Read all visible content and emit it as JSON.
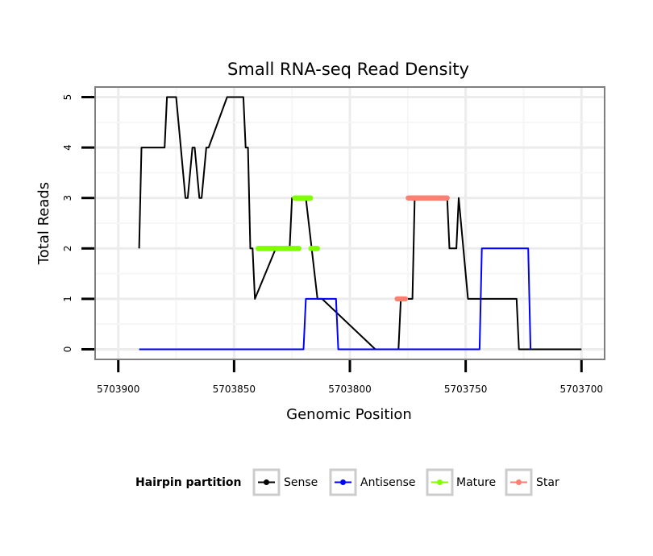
{
  "chart_data": {
    "type": "line",
    "title": "Small RNA-seq Read Density",
    "xlabel": "Genomic Position",
    "ylabel": "Total Reads",
    "x_reversed": true,
    "xlim": [
      5703910,
      5703690
    ],
    "ylim": [
      -0.2,
      5.2
    ],
    "x_ticks": [
      {
        "value": 5703900,
        "label": "5703900"
      },
      {
        "value": 5703850,
        "label": "5703850"
      },
      {
        "value": 5703800,
        "label": "5703800"
      },
      {
        "value": 5703750,
        "label": "5703750"
      },
      {
        "value": 5703700,
        "label": "5703700"
      }
    ],
    "y_ticks": [
      {
        "value": 0,
        "label": "0"
      },
      {
        "value": 1,
        "label": "1"
      },
      {
        "value": 2,
        "label": "2"
      },
      {
        "value": 3,
        "label": "3"
      },
      {
        "value": 4,
        "label": "4"
      },
      {
        "value": 5,
        "label": "5"
      }
    ],
    "grid": true,
    "legend_title": "Hairpin partition",
    "legend_position": "bottom",
    "series": [
      {
        "name": "Sense",
        "color": "#000000",
        "style": "line",
        "x": [
          5703891,
          5703890,
          5703880,
          5703879,
          5703875,
          5703873,
          5703871,
          5703870,
          5703868,
          5703867,
          5703865,
          5703864,
          5703862,
          5703861,
          5703853,
          5703846,
          5703845,
          5703844,
          5703843,
          5703842,
          5703841,
          5703832,
          5703826,
          5703825,
          5703819,
          5703814,
          5703812,
          5703789,
          5703779,
          5703778,
          5703773,
          5703772,
          5703758,
          5703757,
          5703755,
          5703754,
          5703753,
          5703749,
          5703746,
          5703745,
          5703728,
          5703727,
          5703717,
          5703716,
          5703700
        ],
        "y": [
          2,
          4,
          4,
          5,
          5,
          4,
          3,
          3,
          4,
          4,
          3,
          3,
          4,
          4,
          5,
          5,
          4,
          4,
          2,
          2,
          1,
          2,
          2,
          3,
          3,
          1,
          1,
          0,
          0,
          1,
          1,
          3,
          3,
          2,
          2,
          2,
          3,
          1,
          1,
          1,
          1,
          0,
          0,
          0,
          0
        ]
      },
      {
        "name": "Antisense",
        "color": "#0000ff",
        "style": "line",
        "x": [
          5703891,
          5703820,
          5703819,
          5703806,
          5703805,
          5703744,
          5703743,
          5703723,
          5703722
        ],
        "y": [
          0,
          0,
          1,
          1,
          0,
          0,
          2,
          2,
          0
        ]
      },
      {
        "name": "Mature",
        "color": "#7fff00",
        "style": "points",
        "segments": [
          {
            "x_start": 5703840,
            "x_end": 5703822,
            "y": 2
          },
          {
            "x_start": 5703824,
            "x_end": 5703817,
            "y": 3
          },
          {
            "x_start": 5703817,
            "x_end": 5703814,
            "y": 2
          }
        ]
      },
      {
        "name": "Star",
        "color": "#fa8072",
        "style": "points",
        "segments": [
          {
            "x_start": 5703780,
            "x_end": 5703776,
            "y": 1
          },
          {
            "x_start": 5703775,
            "x_end": 5703758,
            "y": 3
          }
        ]
      }
    ]
  }
}
